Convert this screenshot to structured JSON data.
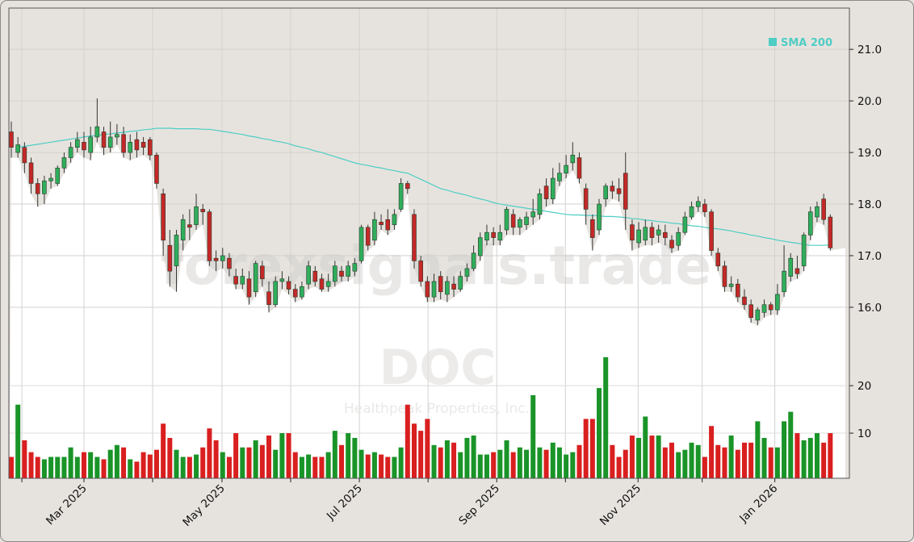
{
  "chart_data": {
    "type": "candlestick",
    "legend": {
      "label": "SMA 200",
      "color": "#4ecdc4",
      "placement": "top-right"
    },
    "watermark": {
      "site": "forexsignals.trade",
      "ticker": "DOC",
      "company": "Healthpeak Properties, Inc."
    },
    "price_axis": {
      "ylim": [
        15.28,
        21.8
      ],
      "ticks": [
        16,
        17,
        18,
        19,
        20,
        21
      ],
      "tick_labels": [
        "16.0",
        "17.0",
        "18.0",
        "19.0",
        "20.0",
        "21.0"
      ],
      "position": "right",
      "grid": true
    },
    "volume_axis": {
      "ylim": [
        0.5,
        99.5
      ],
      "ticks": [
        10,
        20
      ],
      "tick_labels": [
        "10",
        "20"
      ],
      "position": "right",
      "grid": true
    },
    "x_axis": {
      "month_labels": [
        "",
        "Mar 2025",
        "",
        "May 2025",
        "",
        "Jul 2025",
        "",
        "Sep 2025",
        "",
        "Nov 2025",
        "",
        "Jan 2026"
      ],
      "grid": true
    },
    "colors": {
      "up": "#2fae5c",
      "down": "#c42828",
      "up_volume": "#1a9428",
      "down_volume": "#d91f1f",
      "sma": "#4ecdc4",
      "background": "#e6e3de"
    },
    "candles_ohlc": [
      [
        19.4,
        19.6,
        18.9,
        19.1
      ],
      [
        19.0,
        19.3,
        18.9,
        19.15
      ],
      [
        19.1,
        19.2,
        18.6,
        18.8
      ],
      [
        18.8,
        18.9,
        18.2,
        18.4
      ],
      [
        18.4,
        18.5,
        17.95,
        18.2
      ],
      [
        18.2,
        18.55,
        18.0,
        18.45
      ],
      [
        18.45,
        18.6,
        18.3,
        18.5
      ],
      [
        18.4,
        18.75,
        18.35,
        18.7
      ],
      [
        18.7,
        19.0,
        18.6,
        18.9
      ],
      [
        18.9,
        19.2,
        18.8,
        19.1
      ],
      [
        19.1,
        19.4,
        19.0,
        19.25
      ],
      [
        19.2,
        19.4,
        18.9,
        19.05
      ],
      [
        19.0,
        19.5,
        18.85,
        19.3
      ],
      [
        19.3,
        20.05,
        19.2,
        19.5
      ],
      [
        19.4,
        19.5,
        18.95,
        19.1
      ],
      [
        19.1,
        19.6,
        19.0,
        19.3
      ],
      [
        19.3,
        19.55,
        19.15,
        19.35
      ],
      [
        19.35,
        19.5,
        18.9,
        19.0
      ],
      [
        19.0,
        19.35,
        18.85,
        19.2
      ],
      [
        19.25,
        19.4,
        18.9,
        19.05
      ],
      [
        19.2,
        19.3,
        18.95,
        19.1
      ],
      [
        19.25,
        19.3,
        18.85,
        18.95
      ],
      [
        18.95,
        19.0,
        18.3,
        18.4
      ],
      [
        18.2,
        18.3,
        17.0,
        17.3
      ],
      [
        17.2,
        17.5,
        16.4,
        16.7
      ],
      [
        16.8,
        17.5,
        16.3,
        17.4
      ],
      [
        17.3,
        17.8,
        17.1,
        17.7
      ],
      [
        17.6,
        17.9,
        17.3,
        17.55
      ],
      [
        17.6,
        18.2,
        17.5,
        17.95
      ],
      [
        17.9,
        18.0,
        17.6,
        17.85
      ],
      [
        17.85,
        17.9,
        16.8,
        16.9
      ],
      [
        16.95,
        17.1,
        16.7,
        16.9
      ],
      [
        16.9,
        17.15,
        16.75,
        17.0
      ],
      [
        16.95,
        17.05,
        16.6,
        16.75
      ],
      [
        16.6,
        16.75,
        16.35,
        16.45
      ],
      [
        16.45,
        16.75,
        16.35,
        16.6
      ],
      [
        16.55,
        16.7,
        16.05,
        16.2
      ],
      [
        16.3,
        16.9,
        16.2,
        16.85
      ],
      [
        16.8,
        16.9,
        16.4,
        16.55
      ],
      [
        16.3,
        16.5,
        15.9,
        16.05
      ],
      [
        16.05,
        16.6,
        16.0,
        16.5
      ],
      [
        16.5,
        16.7,
        16.35,
        16.55
      ],
      [
        16.5,
        16.6,
        16.25,
        16.35
      ],
      [
        16.35,
        16.45,
        16.1,
        16.2
      ],
      [
        16.2,
        16.5,
        16.15,
        16.4
      ],
      [
        16.45,
        16.9,
        16.35,
        16.8
      ],
      [
        16.7,
        16.8,
        16.4,
        16.5
      ],
      [
        16.55,
        16.65,
        16.3,
        16.35
      ],
      [
        16.4,
        16.65,
        16.3,
        16.5
      ],
      [
        16.5,
        16.9,
        16.4,
        16.8
      ],
      [
        16.7,
        16.8,
        16.5,
        16.6
      ],
      [
        16.6,
        16.9,
        16.5,
        16.8
      ],
      [
        16.7,
        16.95,
        16.6,
        16.85
      ],
      [
        16.9,
        17.6,
        16.85,
        17.55
      ],
      [
        17.55,
        17.6,
        17.1,
        17.2
      ],
      [
        17.3,
        17.85,
        17.2,
        17.7
      ],
      [
        17.65,
        17.8,
        17.5,
        17.6
      ],
      [
        17.7,
        17.9,
        17.4,
        17.5
      ],
      [
        17.6,
        17.9,
        17.5,
        17.8
      ],
      [
        17.9,
        18.5,
        17.85,
        18.4
      ],
      [
        18.4,
        18.45,
        18.2,
        18.3
      ],
      [
        17.8,
        17.9,
        16.75,
        16.9
      ],
      [
        16.9,
        17.0,
        16.4,
        16.5
      ],
      [
        16.5,
        16.6,
        16.1,
        16.2
      ],
      [
        16.2,
        16.65,
        16.1,
        16.5
      ],
      [
        16.6,
        16.7,
        16.15,
        16.3
      ],
      [
        16.25,
        16.6,
        16.1,
        16.5
      ],
      [
        16.45,
        16.6,
        16.2,
        16.35
      ],
      [
        16.35,
        16.7,
        16.3,
        16.6
      ],
      [
        16.6,
        16.85,
        16.5,
        16.75
      ],
      [
        16.75,
        17.2,
        16.7,
        17.05
      ],
      [
        17.0,
        17.45,
        16.9,
        17.35
      ],
      [
        17.3,
        17.6,
        17.2,
        17.45
      ],
      [
        17.45,
        17.55,
        17.2,
        17.35
      ],
      [
        17.3,
        17.6,
        17.2,
        17.45
      ],
      [
        17.5,
        17.95,
        17.4,
        17.9
      ],
      [
        17.8,
        17.9,
        17.4,
        17.55
      ],
      [
        17.55,
        17.75,
        17.4,
        17.7
      ],
      [
        17.6,
        17.85,
        17.5,
        17.75
      ],
      [
        17.75,
        18.1,
        17.6,
        17.85
      ],
      [
        17.8,
        18.3,
        17.7,
        18.2
      ],
      [
        18.35,
        18.5,
        17.95,
        18.1
      ],
      [
        18.1,
        18.7,
        18.0,
        18.5
      ],
      [
        18.45,
        18.8,
        18.35,
        18.6
      ],
      [
        18.6,
        18.95,
        18.5,
        18.75
      ],
      [
        18.8,
        19.2,
        18.65,
        18.95
      ],
      [
        18.9,
        19.0,
        18.4,
        18.5
      ],
      [
        18.3,
        18.4,
        17.6,
        17.9
      ],
      [
        17.7,
        17.8,
        17.1,
        17.35
      ],
      [
        17.5,
        18.1,
        17.4,
        18.0
      ],
      [
        18.1,
        18.4,
        17.95,
        18.35
      ],
      [
        18.35,
        18.45,
        18.1,
        18.25
      ],
      [
        18.3,
        18.5,
        18.05,
        18.2
      ],
      [
        18.6,
        19.0,
        17.5,
        17.9
      ],
      [
        17.6,
        17.7,
        17.1,
        17.3
      ],
      [
        17.25,
        17.65,
        17.15,
        17.5
      ],
      [
        17.3,
        17.7,
        17.2,
        17.55
      ],
      [
        17.55,
        17.65,
        17.2,
        17.35
      ],
      [
        17.4,
        17.6,
        17.25,
        17.5
      ],
      [
        17.45,
        17.6,
        17.2,
        17.35
      ],
      [
        17.3,
        17.4,
        17.05,
        17.15
      ],
      [
        17.2,
        17.55,
        17.1,
        17.45
      ],
      [
        17.45,
        17.85,
        17.4,
        17.75
      ],
      [
        17.75,
        18.05,
        17.7,
        17.95
      ],
      [
        17.95,
        18.15,
        17.85,
        18.05
      ],
      [
        18.0,
        18.1,
        17.75,
        17.85
      ],
      [
        17.85,
        17.9,
        17.0,
        17.1
      ],
      [
        17.05,
        17.15,
        16.7,
        16.8
      ],
      [
        16.8,
        16.9,
        16.3,
        16.4
      ],
      [
        16.4,
        16.6,
        16.3,
        16.45
      ],
      [
        16.45,
        16.55,
        16.1,
        16.2
      ],
      [
        16.2,
        16.35,
        15.95,
        16.05
      ],
      [
        16.05,
        16.15,
        15.7,
        15.8
      ],
      [
        15.75,
        16.0,
        15.65,
        15.95
      ],
      [
        15.9,
        16.15,
        15.8,
        16.05
      ],
      [
        16.05,
        16.1,
        15.85,
        15.95
      ],
      [
        15.95,
        16.45,
        15.85,
        16.25
      ],
      [
        16.3,
        17.2,
        16.2,
        16.7
      ],
      [
        16.6,
        17.05,
        16.5,
        16.95
      ],
      [
        16.75,
        17.0,
        16.55,
        16.65
      ],
      [
        16.8,
        17.45,
        16.7,
        17.4
      ],
      [
        17.4,
        17.95,
        17.3,
        17.85
      ],
      [
        17.75,
        18.05,
        17.65,
        17.95
      ],
      [
        18.1,
        18.2,
        17.6,
        17.7
      ],
      [
        17.75,
        17.8,
        17.1,
        17.15
      ]
    ],
    "volume": [
      5,
      16,
      8.5,
      6,
      5,
      4.5,
      5,
      5,
      5,
      7,
      5,
      6,
      6,
      5,
      4.5,
      6.5,
      7.5,
      7,
      4.5,
      4,
      6,
      5.5,
      6.5,
      12,
      9,
      6.5,
      5,
      5,
      5.5,
      7,
      11,
      8.5,
      6,
      5,
      10,
      7,
      7,
      8.5,
      7.5,
      9.5,
      6.5,
      10,
      10,
      6,
      5,
      5.5,
      5,
      5,
      6,
      10.5,
      7.5,
      10,
      9,
      6.5,
      5.5,
      6,
      5.5,
      5,
      5,
      7,
      16,
      12,
      10.5,
      13,
      7.5,
      7,
      8.5,
      8,
      6,
      9,
      9.5,
      5.5,
      5.5,
      6,
      6.5,
      8.5,
      6,
      7,
      6.5,
      18,
      7,
      6.5,
      8,
      7,
      5.5,
      6,
      7.5,
      13,
      13,
      19.5,
      26,
      7.5,
      5,
      6.5,
      9.5,
      9,
      13.5,
      9.5,
      9.5,
      7,
      8,
      6,
      6.5,
      8,
      7.5,
      5,
      11.5,
      7.5,
      7,
      9.5,
      6.5,
      8,
      8,
      12.5,
      9,
      7,
      7,
      12.5,
      14.5,
      10,
      8.5,
      9,
      10,
      8,
      10
    ],
    "sma_200": [
      null,
      19.1,
      19.12,
      19.14,
      19.16,
      19.18,
      19.2,
      19.22,
      19.24,
      19.26,
      19.28,
      19.3,
      19.32,
      19.33,
      19.35,
      19.36,
      19.38,
      19.39,
      19.41,
      19.42,
      19.44,
      19.45,
      19.47,
      19.47,
      19.47,
      19.46,
      19.46,
      19.46,
      19.46,
      19.45,
      19.45,
      19.43,
      19.41,
      19.39,
      19.37,
      19.35,
      19.32,
      19.3,
      19.27,
      19.25,
      19.22,
      19.2,
      19.17,
      19.13,
      19.1,
      19.07,
      19.03,
      19.0,
      18.96,
      18.92,
      18.88,
      18.84,
      18.8,
      18.77,
      18.75,
      18.72,
      18.7,
      18.67,
      18.65,
      18.62,
      18.6,
      18.54,
      18.48,
      18.42,
      18.36,
      18.3,
      18.27,
      18.23,
      18.2,
      18.17,
      18.13,
      18.1,
      18.07,
      18.03,
      18.0,
      17.98,
      17.96,
      17.94,
      17.92,
      17.9,
      17.88,
      17.86,
      17.84,
      17.82,
      17.8,
      17.79,
      17.79,
      17.78,
      17.78,
      17.77,
      17.76,
      17.76,
      17.75,
      17.74,
      17.72,
      17.71,
      17.69,
      17.68,
      17.66,
      17.65,
      17.63,
      17.62,
      17.6,
      17.58,
      17.57,
      17.55,
      17.53,
      17.52,
      17.5,
      17.48,
      17.45,
      17.43,
      17.4,
      17.38,
      17.35,
      17.33,
      17.3,
      17.28,
      17.26,
      17.24,
      17.22,
      17.2,
      17.2,
      17.2,
      17.21
    ]
  }
}
